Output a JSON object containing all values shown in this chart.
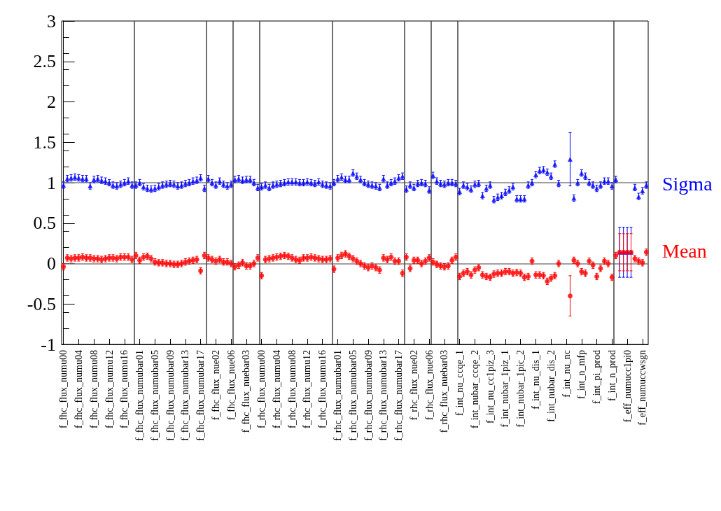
{
  "chart_data": {
    "type": "scatter",
    "categories": [
      "f_fhc_flux_numu00",
      null,
      null,
      null,
      "f_fhc_flux_numu04",
      null,
      null,
      null,
      "f_fhc_flux_numu08",
      null,
      null,
      null,
      "f_fhc_flux_numu12",
      null,
      null,
      null,
      "f_fhc_flux_numu16",
      null,
      null,
      null,
      "f_fhc_flux_numubar01",
      null,
      null,
      null,
      "f_fhc_flux_numubar05",
      null,
      null,
      null,
      "f_fhc_flux_numubar09",
      null,
      null,
      null,
      "f_fhc_flux_numubar13",
      null,
      null,
      null,
      "f_fhc_flux_numubar17",
      null,
      null,
      null,
      "f_fhc_flux_nue02",
      null,
      null,
      null,
      "f_fhc_flux_nue06",
      null,
      null,
      null,
      "f_fhc_flux_nuebar03",
      null,
      null,
      null,
      "f_rhc_flux_numu00",
      null,
      null,
      null,
      "f_rhc_flux_numu04",
      null,
      null,
      null,
      "f_rhc_flux_numu08",
      null,
      null,
      null,
      "f_rhc_flux_numu12",
      null,
      null,
      null,
      "f_rhc_flux_numu16",
      null,
      null,
      null,
      "f_rhc_flux_numubar01",
      null,
      null,
      null,
      "f_rhc_flux_numubar05",
      null,
      null,
      null,
      "f_rhc_flux_numubar09",
      null,
      null,
      null,
      "f_rhc_flux_numubar13",
      null,
      null,
      null,
      "f_rhc_flux_numubar17",
      null,
      null,
      null,
      "f_rhc_flux_nue02",
      null,
      null,
      null,
      "f_rhc_flux_nue06",
      null,
      null,
      null,
      "f_rhc_flux_nuebar03",
      null,
      null,
      null,
      "f_int_nu_ccqe_1",
      null,
      null,
      null,
      "f_int_nubar_ccqe_2",
      null,
      null,
      null,
      "f_int_nu_cc1piz_3",
      null,
      null,
      null,
      "f_int_nubar_1piz_1",
      null,
      null,
      null,
      "f_int_nubar_1pic_2",
      null,
      null,
      null,
      "f_int_nu_dis_1",
      null,
      null,
      null,
      "f_int_nubar_dis_2",
      null,
      null,
      null,
      "f_int_nu_nc",
      null,
      null,
      null,
      "f_int_n_mfp",
      null,
      null,
      null,
      "f_int_pi_prod",
      null,
      null,
      null,
      "f_int_n_prod",
      null,
      null,
      null,
      "f_eff_numucc1pi0",
      null,
      null,
      null,
      "f_eff_numuccwsgn",
      null
    ],
    "ylim": [
      -1,
      3
    ],
    "yticks": [
      -1,
      -0.5,
      0,
      0.5,
      1,
      1.5,
      2,
      2.5,
      3
    ],
    "legend": false,
    "series": [
      {
        "name": "Sigma",
        "color": "#0000ff",
        "marker": "triangle",
        "values": [
          0.97,
          1.05,
          1.06,
          1.07,
          1.06,
          1.05,
          1.05,
          0.96,
          1.04,
          1.05,
          1.03,
          1.02,
          1.0,
          0.97,
          0.96,
          0.98,
          1.0,
          1.02,
          0.97,
          0.97,
          1.0,
          0.95,
          0.93,
          0.92,
          0.93,
          0.95,
          0.97,
          0.98,
          0.99,
          0.98,
          0.96,
          0.97,
          0.99,
          1.0,
          1.02,
          1.03,
          1.06,
          0.93,
          1.05,
          1.0,
          0.97,
          1.02,
          0.98,
          0.96,
          0.98,
          1.04,
          1.05,
          1.03,
          1.04,
          1.04,
          1.0,
          0.94,
          0.95,
          0.97,
          0.94,
          0.97,
          0.98,
          0.99,
          1.0,
          1.01,
          1.01,
          1.01,
          1.0,
          1.0,
          1.01,
          1.0,
          0.99,
          1.01,
          0.98,
          0.97,
          0.96,
          1.0,
          1.05,
          1.07,
          1.04,
          1.04,
          1.12,
          1.08,
          1.04,
          1.0,
          0.98,
          0.97,
          0.96,
          0.94,
          1.05,
          0.97,
          1.0,
          1.02,
          1.06,
          1.08,
          0.92,
          0.97,
          0.94,
          0.99,
          1.0,
          0.99,
          0.91,
          1.09,
          1.02,
          0.99,
          0.98,
          1.0,
          1.0,
          0.99,
          0.89,
          0.97,
          0.95,
          0.92,
          0.98,
          0.99,
          0.84,
          0.93,
          0.97,
          0.79,
          0.82,
          0.84,
          0.88,
          0.91,
          0.95,
          0.8,
          0.8,
          0.8,
          0.97,
          1.0,
          1.1,
          1.15,
          1.16,
          1.13,
          1.08,
          1.23,
          0.99,
          null,
          null,
          1.29,
          0.81,
          1.0,
          1.12,
          1.08,
          1.0,
          0.97,
          0.93,
          0.97,
          1.02,
          1.02,
          0.96,
          1.04,
          0.14,
          0.14,
          0.14,
          0.14,
          0.94,
          0.83,
          0.9,
          0.97
        ],
        "errors": [
          0.04,
          0.04,
          0.04,
          0.04,
          0.04,
          0.04,
          0.04,
          0.04,
          0.04,
          0.04,
          0.04,
          0.04,
          0.04,
          0.04,
          0.04,
          0.04,
          0.04,
          0.04,
          0.04,
          0.04,
          0.04,
          0.04,
          0.04,
          0.04,
          0.04,
          0.04,
          0.04,
          0.04,
          0.04,
          0.04,
          0.04,
          0.04,
          0.04,
          0.04,
          0.04,
          0.04,
          0.04,
          0.04,
          0.04,
          0.04,
          0.04,
          0.04,
          0.04,
          0.04,
          0.04,
          0.04,
          0.04,
          0.04,
          0.04,
          0.04,
          0.04,
          0.04,
          0.04,
          0.04,
          0.04,
          0.04,
          0.04,
          0.04,
          0.04,
          0.04,
          0.04,
          0.04,
          0.04,
          0.04,
          0.04,
          0.04,
          0.04,
          0.04,
          0.04,
          0.04,
          0.04,
          0.04,
          0.04,
          0.04,
          0.04,
          0.04,
          0.04,
          0.04,
          0.04,
          0.04,
          0.04,
          0.04,
          0.04,
          0.04,
          0.04,
          0.04,
          0.04,
          0.04,
          0.04,
          0.04,
          0.04,
          0.04,
          0.04,
          0.04,
          0.04,
          0.04,
          0.04,
          0.04,
          0.04,
          0.04,
          0.04,
          0.04,
          0.04,
          0.04,
          0.04,
          0.04,
          0.04,
          0.04,
          0.04,
          0.04,
          0.04,
          0.04,
          0.04,
          0.04,
          0.04,
          0.04,
          0.04,
          0.04,
          0.04,
          0.04,
          0.04,
          0.04,
          0.04,
          0.04,
          0.04,
          0.04,
          0.04,
          0.04,
          0.04,
          0.04,
          0.04,
          null,
          null,
          0.33,
          0.04,
          0.04,
          0.04,
          0.04,
          0.04,
          0.04,
          0.04,
          0.04,
          0.04,
          0.04,
          0.04,
          0.04,
          0.31,
          0.31,
          0.31,
          0.31,
          0.04,
          0.04,
          0.04,
          0.04
        ]
      },
      {
        "name": "Mean",
        "color": "#ff0000",
        "marker": "circle",
        "values": [
          -0.04,
          0.07,
          0.06,
          0.07,
          0.07,
          0.08,
          0.07,
          0.07,
          0.06,
          0.06,
          0.05,
          0.06,
          0.07,
          0.07,
          0.06,
          0.08,
          0.08,
          0.08,
          0.05,
          0.1,
          0.04,
          0.08,
          0.09,
          0.06,
          0.02,
          0.01,
          0.01,
          0.0,
          0.0,
          -0.01,
          -0.01,
          0.0,
          0.02,
          0.03,
          0.04,
          0.05,
          -0.09,
          0.1,
          0.07,
          0.05,
          0.03,
          0.05,
          0.02,
          0.02,
          0.0,
          -0.04,
          -0.02,
          0.01,
          -0.03,
          -0.03,
          0.0,
          0.07,
          -0.15,
          0.05,
          0.06,
          0.07,
          0.08,
          0.09,
          0.1,
          0.09,
          0.07,
          0.05,
          0.04,
          0.07,
          0.07,
          0.08,
          0.07,
          0.06,
          0.05,
          0.05,
          0.06,
          -0.07,
          0.07,
          0.1,
          0.12,
          0.09,
          0.06,
          0.03,
          0.0,
          -0.03,
          -0.05,
          -0.03,
          -0.05,
          -0.08,
          0.07,
          0.05,
          0.08,
          0.03,
          0.03,
          -0.12,
          0.08,
          -0.06,
          0.04,
          0.04,
          0.0,
          0.03,
          0.07,
          0.02,
          -0.01,
          -0.03,
          -0.04,
          -0.03,
          0.04,
          0.08,
          -0.16,
          -0.12,
          -0.1,
          -0.14,
          -0.08,
          -0.05,
          -0.14,
          -0.16,
          -0.17,
          -0.13,
          -0.12,
          -0.12,
          -0.1,
          -0.1,
          -0.12,
          -0.11,
          -0.12,
          -0.17,
          -0.16,
          0.03,
          -0.14,
          -0.14,
          -0.15,
          -0.22,
          -0.18,
          -0.15,
          0.0,
          null,
          null,
          -0.4,
          0.04,
          0.0,
          -0.1,
          -0.12,
          0.03,
          -0.02,
          -0.16,
          -0.06,
          0.03,
          0.0,
          -0.17,
          0.1,
          0.14,
          0.14,
          0.14,
          0.14,
          0.06,
          0.03,
          0.01,
          0.14
        ],
        "errors": [
          0.04,
          0.04,
          0.04,
          0.04,
          0.04,
          0.04,
          0.04,
          0.04,
          0.04,
          0.04,
          0.04,
          0.04,
          0.04,
          0.04,
          0.04,
          0.04,
          0.04,
          0.04,
          0.04,
          0.04,
          0.04,
          0.04,
          0.04,
          0.04,
          0.04,
          0.04,
          0.04,
          0.04,
          0.04,
          0.04,
          0.04,
          0.04,
          0.04,
          0.04,
          0.04,
          0.04,
          0.04,
          0.04,
          0.04,
          0.04,
          0.04,
          0.04,
          0.04,
          0.04,
          0.04,
          0.04,
          0.04,
          0.04,
          0.04,
          0.04,
          0.04,
          0.04,
          0.04,
          0.04,
          0.04,
          0.04,
          0.04,
          0.04,
          0.04,
          0.04,
          0.04,
          0.04,
          0.04,
          0.04,
          0.04,
          0.04,
          0.04,
          0.04,
          0.04,
          0.04,
          0.04,
          0.04,
          0.04,
          0.04,
          0.04,
          0.04,
          0.04,
          0.04,
          0.04,
          0.04,
          0.04,
          0.04,
          0.04,
          0.04,
          0.04,
          0.04,
          0.04,
          0.04,
          0.04,
          0.04,
          0.04,
          0.04,
          0.04,
          0.04,
          0.04,
          0.04,
          0.04,
          0.04,
          0.04,
          0.04,
          0.04,
          0.04,
          0.04,
          0.04,
          0.04,
          0.04,
          0.04,
          0.04,
          0.04,
          0.04,
          0.04,
          0.04,
          0.04,
          0.04,
          0.04,
          0.04,
          0.04,
          0.04,
          0.04,
          0.04,
          0.04,
          0.04,
          0.04,
          0.04,
          0.04,
          0.04,
          0.04,
          0.04,
          0.04,
          0.04,
          0.04,
          null,
          null,
          0.25,
          0.04,
          0.04,
          0.04,
          0.04,
          0.04,
          0.04,
          0.04,
          0.04,
          0.04,
          0.04,
          0.04,
          0.04,
          0.23,
          0.23,
          0.23,
          0.23,
          0.04,
          0.04,
          0.04,
          0.04
        ]
      }
    ],
    "ref_lines": [
      {
        "axis": "y",
        "value": 0,
        "color": "#808080"
      },
      {
        "axis": "y",
        "value": 1,
        "color": "#808080"
      }
    ]
  }
}
